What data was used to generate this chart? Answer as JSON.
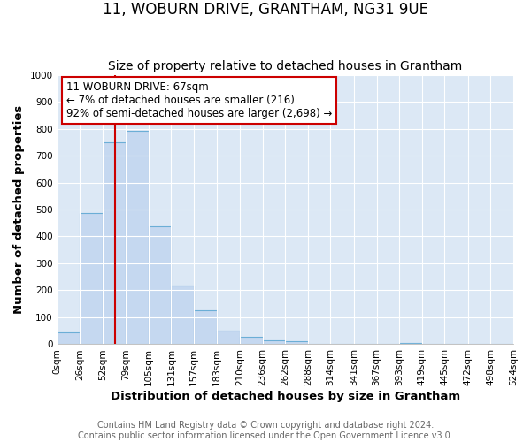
{
  "title": "11, WOBURN DRIVE, GRANTHAM, NG31 9UE",
  "subtitle": "Size of property relative to detached houses in Grantham",
  "xlabel": "Distribution of detached houses by size in Grantham",
  "ylabel": "Number of detached properties",
  "bar_heights": [
    44,
    487,
    750,
    793,
    437,
    219,
    127,
    51,
    27,
    15,
    10,
    2,
    0,
    0,
    0,
    5,
    0,
    0,
    0,
    3
  ],
  "bin_edges": [
    0,
    26,
    52,
    79,
    105,
    131,
    157,
    183,
    210,
    236,
    262,
    288,
    314,
    341,
    367,
    393,
    419,
    445,
    472,
    498,
    524
  ],
  "tick_labels": [
    "0sqm",
    "26sqm",
    "52sqm",
    "79sqm",
    "105sqm",
    "131sqm",
    "157sqm",
    "183sqm",
    "210sqm",
    "236sqm",
    "262sqm",
    "288sqm",
    "314sqm",
    "341sqm",
    "367sqm",
    "393sqm",
    "419sqm",
    "445sqm",
    "472sqm",
    "498sqm",
    "524sqm"
  ],
  "bar_color": "#c5d8f0",
  "bar_edge_color": "#6baed6",
  "plot_bg_color": "#dce8f5",
  "fig_bg_color": "#ffffff",
  "grid_color": "#ffffff",
  "property_line_x": 67,
  "property_line_color": "#cc0000",
  "annotation_box_text": "11 WOBURN DRIVE: 67sqm\n← 7% of detached houses are smaller (216)\n92% of semi-detached houses are larger (2,698) →",
  "annotation_box_color": "#cc0000",
  "ylim": [
    0,
    1000
  ],
  "yticks": [
    0,
    100,
    200,
    300,
    400,
    500,
    600,
    700,
    800,
    900,
    1000
  ],
  "footer_line1": "Contains HM Land Registry data © Crown copyright and database right 2024.",
  "footer_line2": "Contains public sector information licensed under the Open Government Licence v3.0.",
  "title_fontsize": 12,
  "subtitle_fontsize": 10,
  "axis_label_fontsize": 9.5,
  "tick_fontsize": 7.5,
  "annotation_fontsize": 8.5,
  "footer_fontsize": 7
}
